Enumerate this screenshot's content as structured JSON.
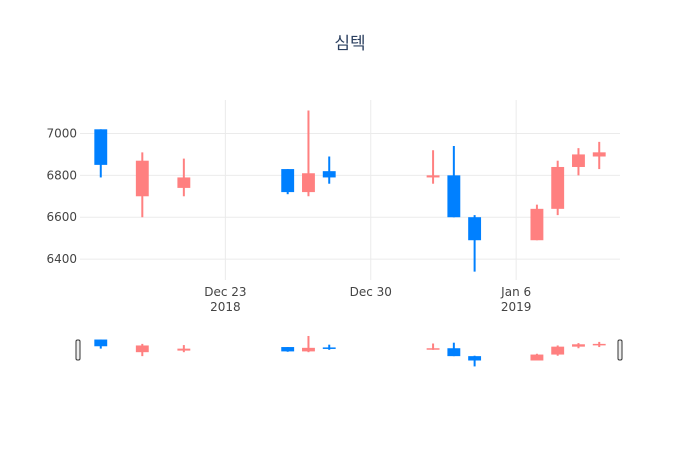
{
  "chart_data": {
    "type": "candlestick",
    "title": "심텍",
    "y_ticks": [
      6400,
      6600,
      6800,
      7000
    ],
    "ylim": [
      6300,
      7160
    ],
    "x_ticks": [
      {
        "date": "2018-12-23",
        "label": "Dec 23",
        "sublabel": "2018"
      },
      {
        "date": "2018-12-30",
        "label": "Dec 30",
        "sublabel": ""
      },
      {
        "date": "2019-01-06",
        "label": "Jan 6",
        "sublabel": "2019"
      }
    ],
    "xlim": [
      "2018-12-16",
      "2019-01-11"
    ],
    "grid": true,
    "rangeslider": true,
    "colors": {
      "increasing": "#0080ff",
      "decreasing": "#ff8080"
    },
    "candles": [
      {
        "date": "2018-12-17",
        "open": 6850,
        "high": 7020,
        "low": 6790,
        "close": 7020
      },
      {
        "date": "2018-12-19",
        "open": 6870,
        "high": 6910,
        "low": 6600,
        "close": 6700
      },
      {
        "date": "2018-12-21",
        "open": 6790,
        "high": 6880,
        "low": 6700,
        "close": 6740
      },
      {
        "date": "2018-12-26",
        "open": 6720,
        "high": 6830,
        "low": 6710,
        "close": 6830
      },
      {
        "date": "2018-12-27",
        "open": 6810,
        "high": 7110,
        "low": 6700,
        "close": 6720
      },
      {
        "date": "2018-12-28",
        "open": 6790,
        "high": 6890,
        "low": 6760,
        "close": 6820
      },
      {
        "date": "2019-01-02",
        "open": 6800,
        "high": 6920,
        "low": 6760,
        "close": 6790
      },
      {
        "date": "2019-01-03",
        "open": 6600,
        "high": 6940,
        "low": 6600,
        "close": 6800
      },
      {
        "date": "2019-01-04",
        "open": 6490,
        "high": 6610,
        "low": 6340,
        "close": 6600
      },
      {
        "date": "2019-01-07",
        "open": 6640,
        "high": 6660,
        "low": 6490,
        "close": 6490
      },
      {
        "date": "2019-01-08",
        "open": 6840,
        "high": 6870,
        "low": 6610,
        "close": 6640
      },
      {
        "date": "2019-01-09",
        "open": 6900,
        "high": 6930,
        "low": 6800,
        "close": 6840
      },
      {
        "date": "2019-01-10",
        "open": 6910,
        "high": 6960,
        "low": 6830,
        "close": 6890
      }
    ]
  }
}
